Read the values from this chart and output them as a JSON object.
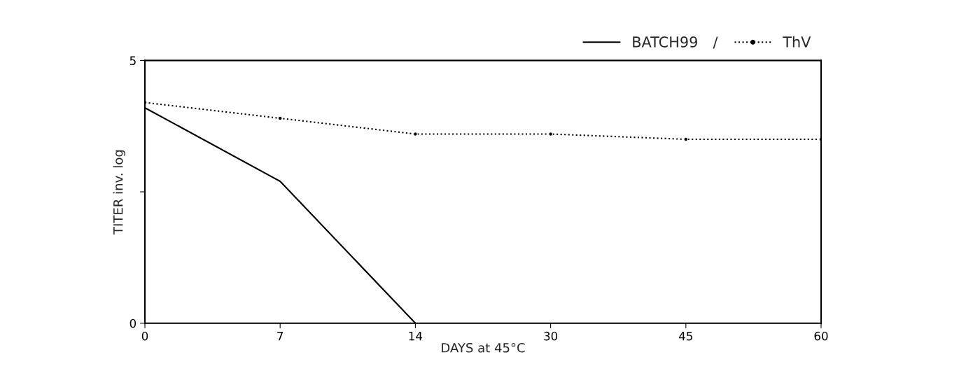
{
  "chart_data": {
    "type": "line",
    "xlabel": "DAYS at 45°C",
    "ylabel": "TITER inv. log",
    "categories": [
      "0",
      "7",
      "14",
      "30",
      "45",
      "60"
    ],
    "series": [
      {
        "name": "BATCH99",
        "color": "#000000",
        "values": [
          4.1,
          2.7,
          0,
          null,
          null,
          null
        ],
        "line_style": "solid",
        "marker": "none"
      },
      {
        "name": "ThV",
        "color": "#000000",
        "values": [
          4.2,
          3.9,
          3.6,
          3.6,
          3.5,
          3.5
        ],
        "line_style": "dotted",
        "marker": "circle"
      }
    ],
    "ylim": [
      0,
      5
    ],
    "yticks": [
      0,
      {
        "value": 2.5,
        "label": null
      },
      5
    ],
    "annotations": [
      "/"
    ],
    "grid": false,
    "legend": "top right"
  }
}
